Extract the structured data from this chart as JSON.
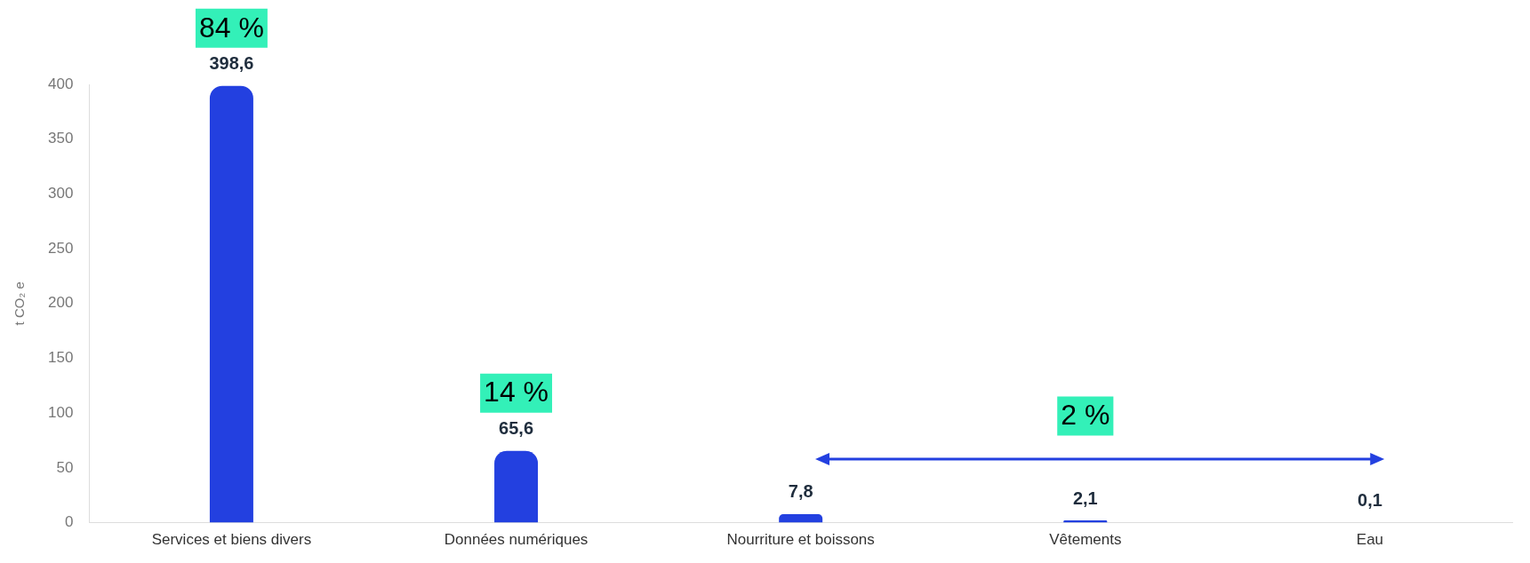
{
  "chart_data": {
    "type": "bar",
    "ylabel": "t CO₂ e",
    "categories": [
      "Services et biens divers",
      "Données numériques",
      "Nourriture et boissons",
      "Vêtements",
      "Eau"
    ],
    "values": [
      398.6,
      65.6,
      7.8,
      2.1,
      0.1
    ],
    "value_labels": [
      "398,6",
      "65,6",
      "7,8",
      "2,1",
      "0,1"
    ],
    "color": "#2340e0",
    "ylim": [
      0,
      400
    ],
    "yticks": [
      0,
      50,
      100,
      150,
      200,
      250,
      300,
      350,
      400
    ],
    "grid": false,
    "legend": false,
    "annotations": [
      "84 %",
      "14 %",
      "2 %"
    ]
  }
}
